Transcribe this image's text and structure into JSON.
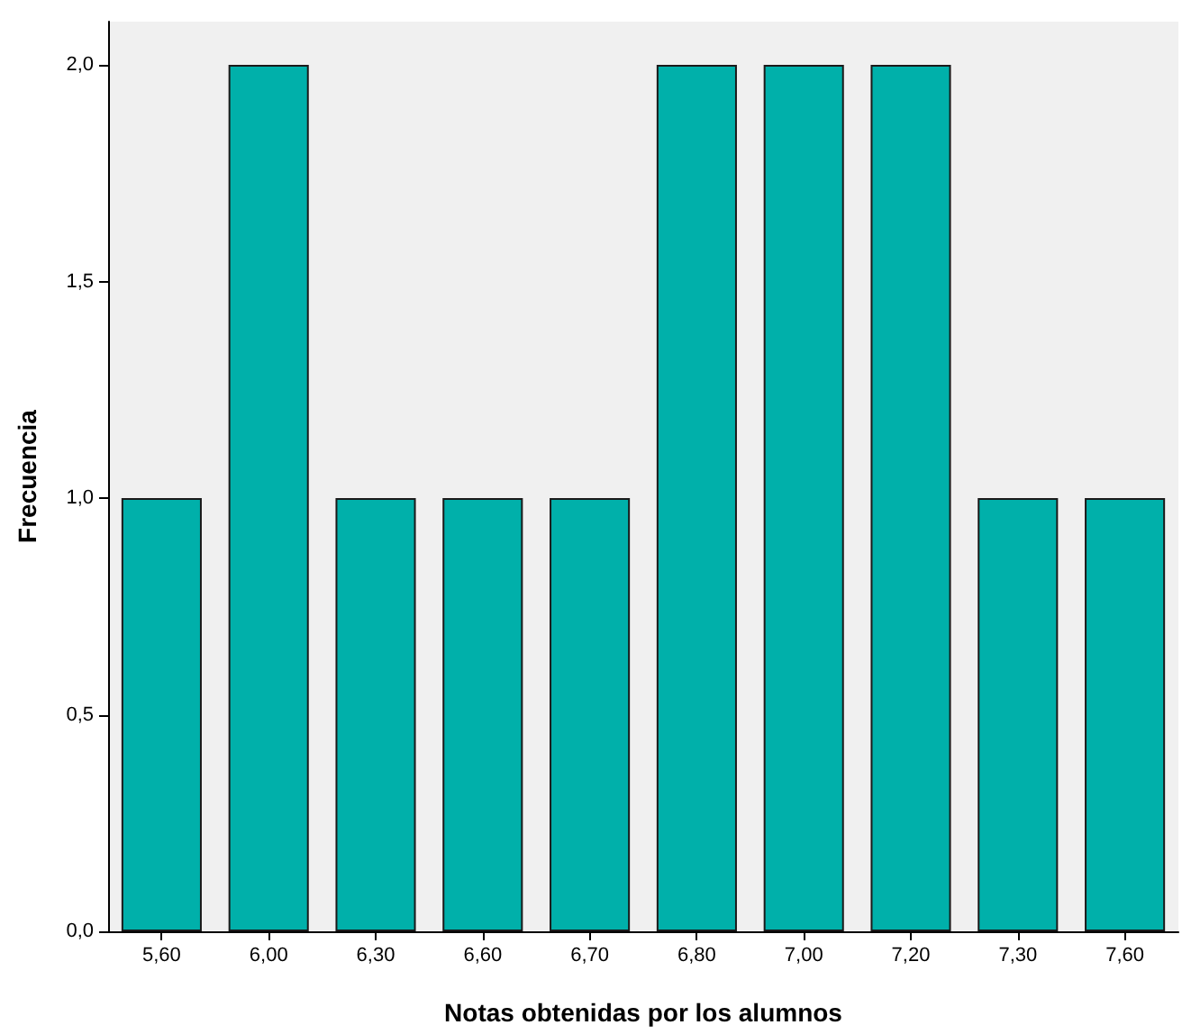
{
  "chart_data": {
    "type": "bar",
    "xlabel": "Notas obtenidas por los alumnos",
    "ylabel": "Frecuencia",
    "categories": [
      "5,60",
      "6,00",
      "6,30",
      "6,60",
      "6,70",
      "6,80",
      "7,00",
      "7,20",
      "7,30",
      "7,60"
    ],
    "values": [
      1,
      2,
      1,
      1,
      1,
      2,
      2,
      2,
      1,
      1
    ],
    "color": "#00b0aa",
    "ylim": [
      0,
      2.1
    ],
    "yticks": [
      {
        "value": 0,
        "label": "0,0"
      },
      {
        "value": 0.5,
        "label": "0,5"
      },
      {
        "value": 1,
        "label": "1,0"
      },
      {
        "value": 1.5,
        "label": "1,5"
      },
      {
        "value": 2,
        "label": "2,0"
      }
    ],
    "grid": false
  }
}
